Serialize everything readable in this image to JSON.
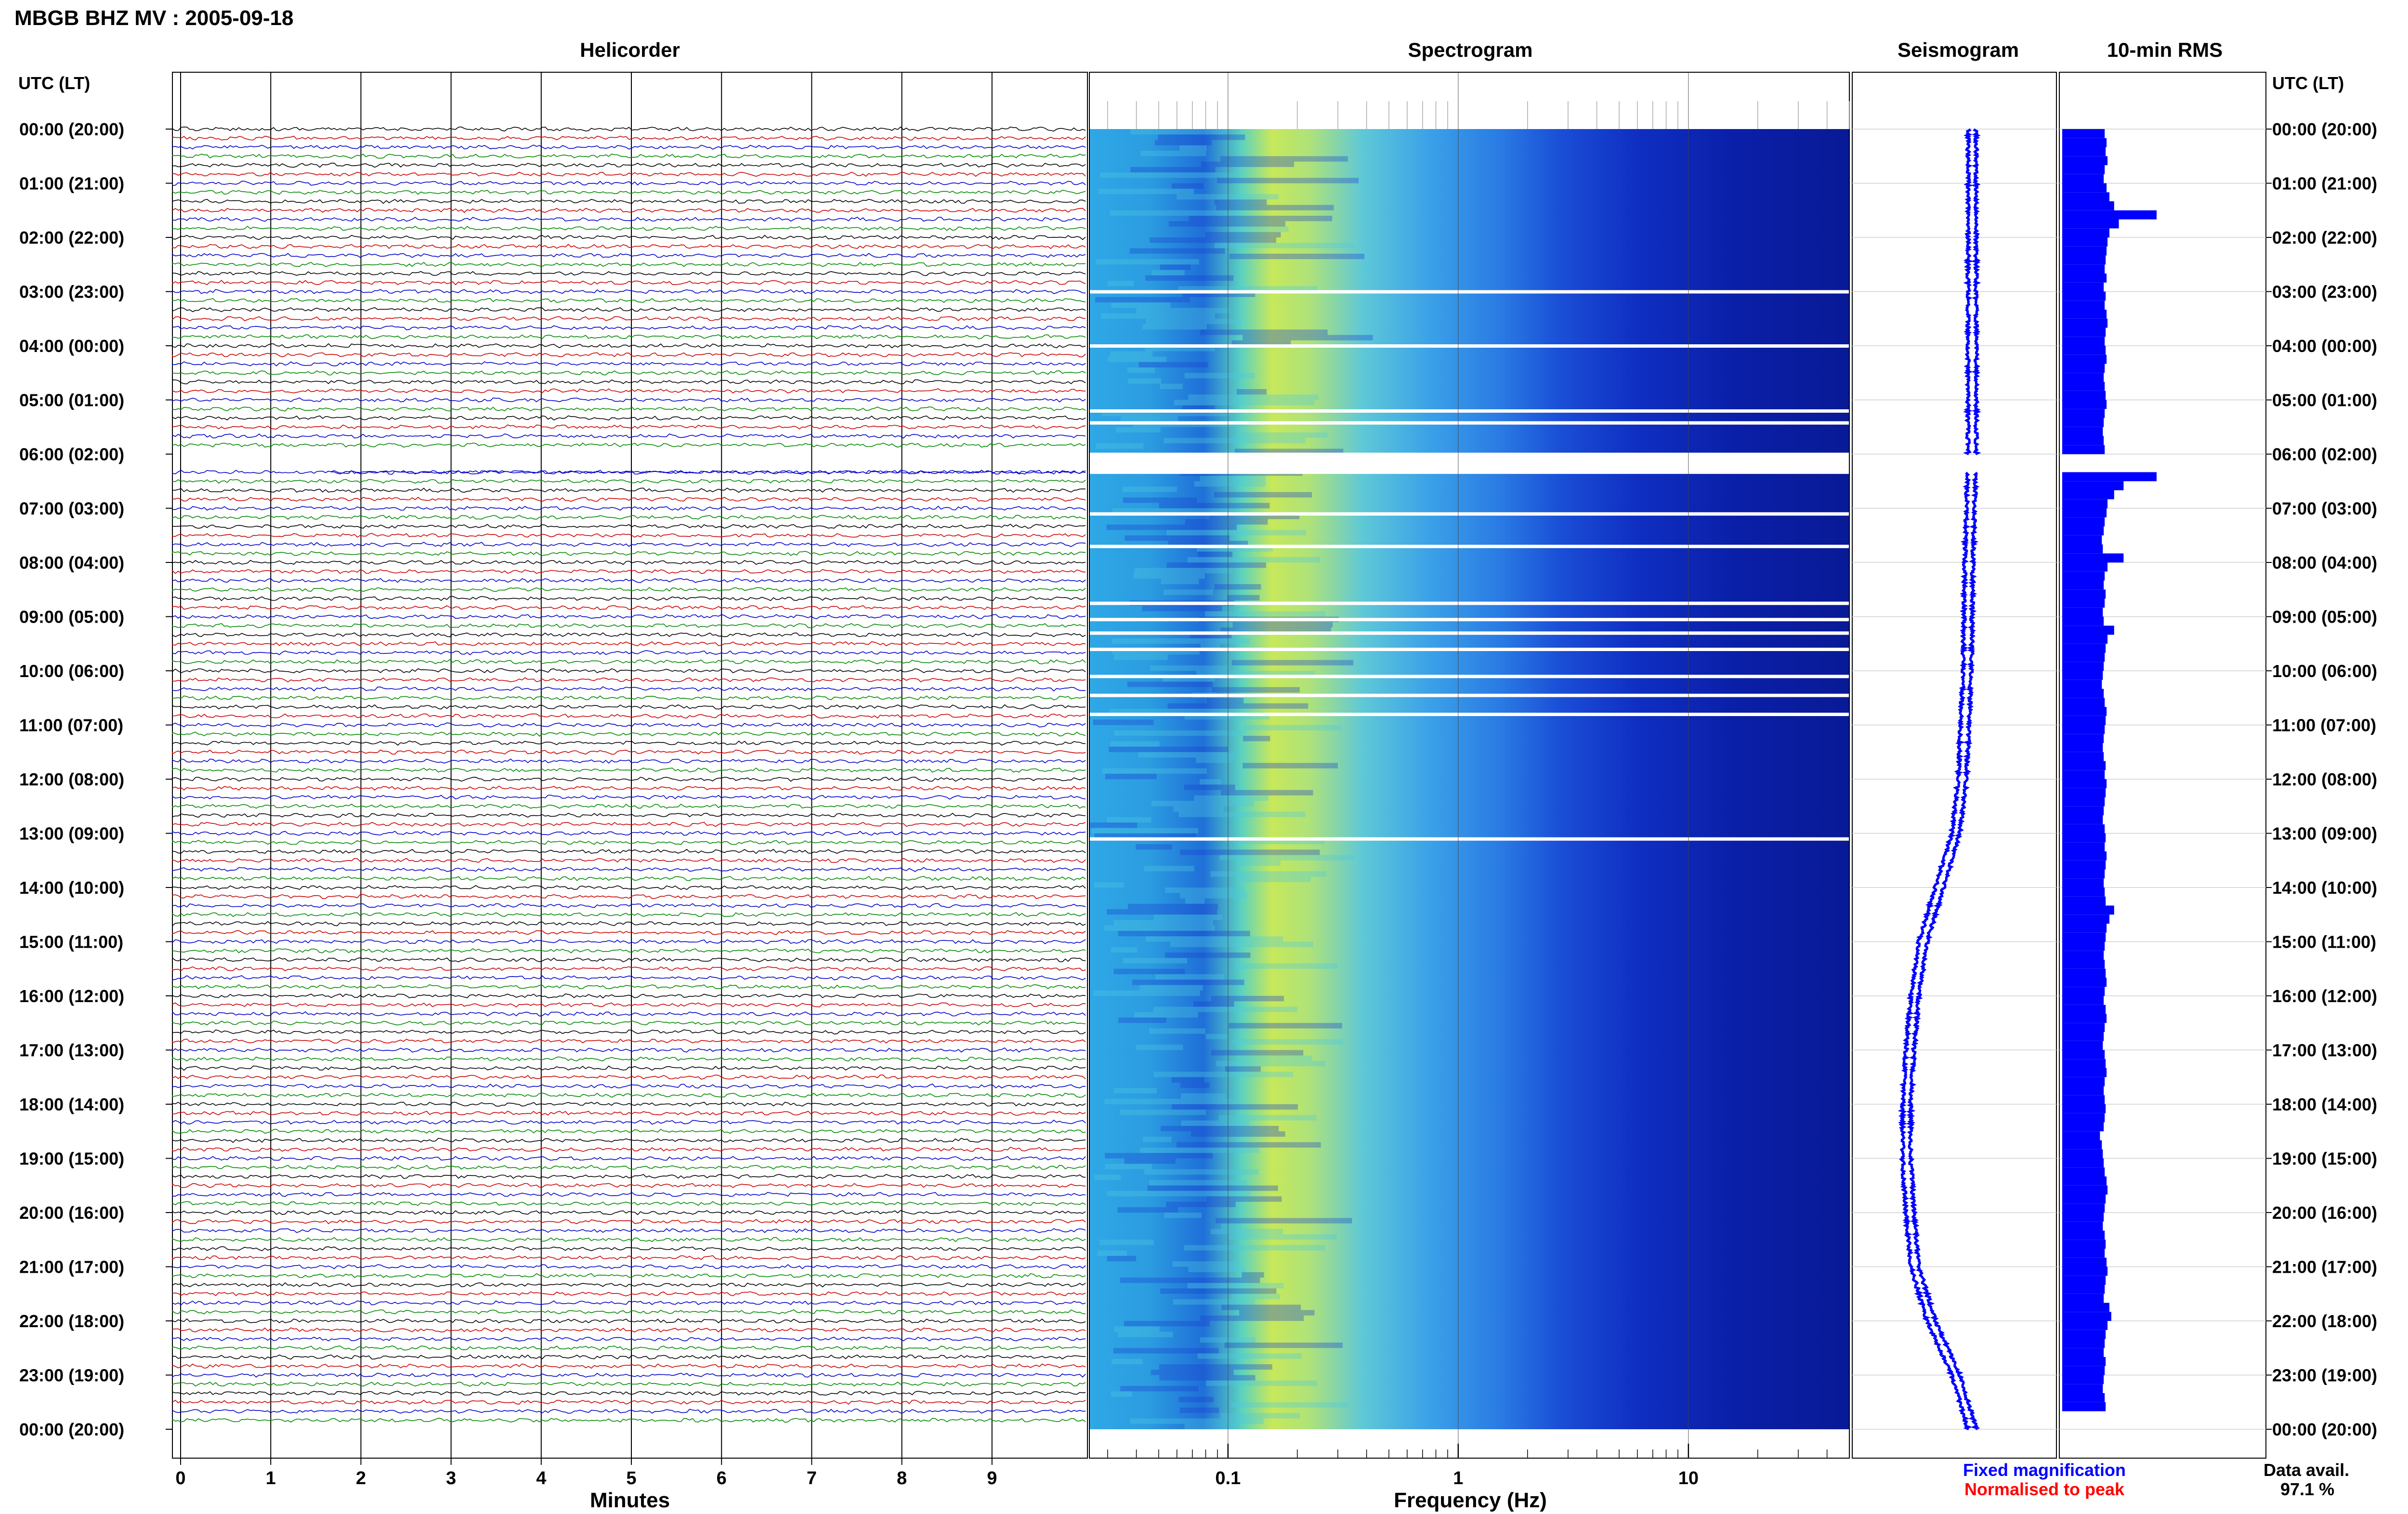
{
  "header": {
    "title": "MBGB BHZ MV : 2005-09-18"
  },
  "panels": {
    "helicorder": "Helicorder",
    "spectrogram": "Spectrogram",
    "seismogram": "Seismogram",
    "rms": "10-min RMS"
  },
  "axes": {
    "time_header_left": "UTC (LT)",
    "time_header_right": "UTC (LT)",
    "helicorder_xlabel": "Minutes",
    "spectrogram_xlabel": "Frequency (Hz)"
  },
  "legend": {
    "fixed": "Fixed magnification",
    "normalised": "Normalised to peak",
    "fixed_color": "#0000ff",
    "normalised_color": "#ff0000"
  },
  "availability": {
    "label": "Data avail.",
    "value": "97.1 %"
  },
  "chart_data": {
    "type": "multi-panel seismic plot",
    "time_labels": [
      "00:00 (20:00)",
      "01:00 (21:00)",
      "02:00 (22:00)",
      "03:00 (23:00)",
      "04:00 (00:00)",
      "05:00 (01:00)",
      "06:00 (02:00)",
      "07:00 (03:00)",
      "08:00 (04:00)",
      "09:00 (05:00)",
      "10:00 (06:00)",
      "11:00 (07:00)",
      "12:00 (08:00)",
      "13:00 (09:00)",
      "14:00 (10:00)",
      "15:00 (11:00)",
      "16:00 (12:00)",
      "17:00 (13:00)",
      "18:00 (14:00)",
      "19:00 (15:00)",
      "20:00 (16:00)",
      "21:00 (17:00)",
      "22:00 (18:00)",
      "23:00 (19:00)",
      "00:00 (20:00)"
    ],
    "helicorder_minute_ticks": [
      "0",
      "1",
      "2",
      "3",
      "4",
      "5",
      "6",
      "7",
      "8",
      "9"
    ],
    "helicorder_trace_colors": [
      "#000000",
      "#cc0000",
      "#0000cc",
      "#008800"
    ],
    "helicorder_gap_hours": [
      6.0,
      6.33
    ],
    "spectrogram_freq_ticks": [
      {
        "label": "0.1",
        "value": 0.1
      },
      {
        "label": "1",
        "value": 1
      },
      {
        "label": "10",
        "value": 10
      }
    ],
    "spectrogram_freq_range_hz": [
      0.025,
      50
    ],
    "spectrogram_gap_rows_hours": [
      3.0,
      4.0,
      5.2,
      5.42,
      6.0,
      6.33,
      7.1,
      7.7,
      8.75,
      9.05,
      9.3,
      9.6,
      10.1,
      10.45,
      10.8,
      13.1
    ],
    "seismogram_color": "#0000ff",
    "seismogram_drift": [
      {
        "h": 0,
        "v": 0.0
      },
      {
        "h": 2,
        "v": 0.0
      },
      {
        "h": 4,
        "v": 0.0
      },
      {
        "h": 6,
        "v": 0.0
      },
      {
        "h": 8,
        "v": 0.02
      },
      {
        "h": 10,
        "v": 0.03
      },
      {
        "h": 12,
        "v": 0.06
      },
      {
        "h": 13,
        "v": 0.1
      },
      {
        "h": 14,
        "v": 0.2
      },
      {
        "h": 15,
        "v": 0.3
      },
      {
        "h": 16,
        "v": 0.35
      },
      {
        "h": 17,
        "v": 0.38
      },
      {
        "h": 18,
        "v": 0.4
      },
      {
        "h": 19,
        "v": 0.4
      },
      {
        "h": 20,
        "v": 0.38
      },
      {
        "h": 21,
        "v": 0.35
      },
      {
        "h": 22,
        "v": 0.25
      },
      {
        "h": 23,
        "v": 0.1
      },
      {
        "h": 24,
        "v": 0.0
      }
    ],
    "rms_color": "#0000ff",
    "rms_values_10min": [
      0.45,
      0.47,
      0.46,
      0.48,
      0.45,
      0.44,
      0.47,
      0.5,
      0.55,
      1.0,
      0.6,
      0.5,
      0.48,
      0.47,
      0.46,
      0.45,
      0.47,
      0.44,
      0.46,
      0.45,
      0.47,
      0.48,
      0.46,
      0.45,
      0.46,
      0.47,
      0.45,
      0.44,
      0.45,
      0.46,
      0.47,
      0.45,
      0.44,
      0.43,
      0.44,
      0.45,
      null,
      null,
      1.0,
      0.65,
      0.55,
      0.48,
      0.47,
      0.45,
      0.44,
      0.42,
      0.43,
      0.65,
      0.48,
      0.45,
      0.44,
      0.46,
      0.45,
      0.43,
      0.44,
      0.55,
      0.48,
      0.46,
      0.45,
      0.44,
      0.43,
      0.42,
      0.44,
      0.45,
      0.47,
      0.46,
      0.45,
      0.44,
      0.43,
      0.44,
      0.46,
      0.45,
      0.47,
      0.46,
      0.45,
      0.44,
      0.43,
      0.45,
      0.46,
      0.45,
      0.47,
      0.46,
      0.45,
      0.44,
      0.45,
      0.46,
      0.55,
      0.5,
      0.47,
      0.46,
      0.45,
      0.44,
      0.45,
      0.46,
      0.47,
      0.45,
      0.44,
      0.46,
      0.47,
      0.45,
      0.44,
      0.43,
      0.45,
      0.46,
      0.47,
      0.45,
      0.44,
      0.45,
      0.46,
      0.45,
      0.44,
      0.4,
      0.42,
      0.43,
      0.44,
      0.45,
      0.47,
      0.48,
      0.46,
      0.45,
      0.44,
      0.43,
      0.45,
      0.46,
      0.45,
      0.47,
      0.48,
      0.46,
      0.45,
      0.44,
      0.5,
      0.52,
      0.48,
      0.46,
      0.45,
      0.44,
      0.46,
      0.45,
      0.44,
      0.43,
      0.45,
      0.46
    ]
  }
}
